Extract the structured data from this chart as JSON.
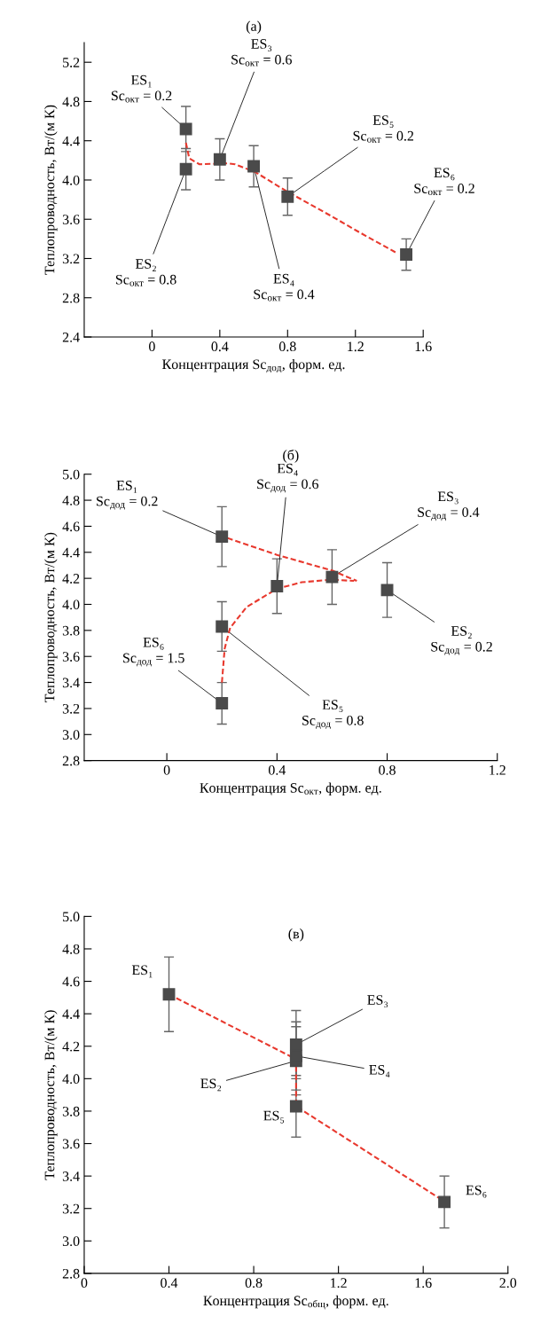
{
  "chart_data": [
    {
      "type": "scatter",
      "title": "(a)",
      "xlabel": "Концентрация Sc$_{дод}$, форм. ед.",
      "ylabel": "Теплопроводность, Вт/(м К)",
      "xlim": [
        -0.4,
        1.6
      ],
      "xticks": [
        0,
        0.4,
        0.8,
        1.2,
        1.6
      ],
      "ylim": [
        2.4,
        5.4
      ],
      "yticks": [
        2.4,
        2.8,
        3.2,
        3.6,
        {
          "value": 4,
          "label": "4.0"
        },
        4.4,
        4.8,
        5.2
      ],
      "series": [
        {
          "type": "scatter",
          "color": "#4a4a4a",
          "marker": "square",
          "x": [
            0.2,
            0.2,
            0.4,
            0.6,
            0.8,
            1.5
          ],
          "values": [
            4.52,
            4.11,
            4.21,
            4.14,
            3.83,
            3.24
          ],
          "errors": [
            0.23,
            0.21,
            0.21,
            0.21,
            0.19,
            0.16
          ]
        },
        {
          "type": "line",
          "color": "#e8392e",
          "line_style": "dashed",
          "x": [
            0.2,
            0.22,
            0.28,
            0.445,
            0.49,
            0.61,
            0.79,
            1.06,
            1.21,
            1.45
          ],
          "values": [
            4.38,
            4.22,
            4.16,
            4.17,
            4.16,
            4.08,
            3.89,
            3.63,
            3.48,
            3.25
          ]
        }
      ],
      "annotations": [
        {
          "text": "ES₁\nSc$_{окт}$ = 0.2",
          "x": 0.2,
          "y": 4.52
        },
        {
          "text": "ES₂\nSc$_{окт}$ = 0.8",
          "x": 0.2,
          "y": 4.11
        },
        {
          "text": "ES₃\nSc$_{окт}$ = 0.6",
          "x": 0.4,
          "y": 4.21
        },
        {
          "text": "ES₄\nSc$_{окт}$ = 0.4",
          "x": 0.6,
          "y": 4.14
        },
        {
          "text": "ES₅\nSc$_{окт}$ = 0.2",
          "x": 0.8,
          "y": 3.83
        },
        {
          "text": "ES₆\nSc$_{окт}$ = 0.2",
          "x": 1.5,
          "y": 3.24
        }
      ]
    },
    {
      "type": "scatter",
      "title": "(б)",
      "xlabel": "Концентрация Sc$_{окт}$, форм. ед.",
      "ylabel": "Теплопроводность, Вт/(м К)",
      "xlim": [
        -0.3,
        1.2
      ],
      "xticks": [
        0,
        0.4,
        0.8,
        1.2
      ],
      "ylim": [
        2.8,
        5.0
      ],
      "yticks": [
        2.8,
        {
          "value": 3,
          "label": "3.0"
        },
        3.2,
        3.4,
        3.6,
        3.8,
        {
          "value": 4,
          "label": "4.0"
        },
        4.2,
        4.4,
        4.6,
        4.8,
        {
          "value": 5,
          "label": "5.0"
        }
      ],
      "series": [
        {
          "type": "scatter",
          "color": "#4a4a4a",
          "marker": "square",
          "x": [
            0.2,
            0.4,
            0.6,
            0.8,
            0.2,
            0.2
          ],
          "values": [
            4.52,
            4.14,
            4.21,
            4.11,
            3.83,
            3.24
          ],
          "errors": [
            0.23,
            0.21,
            0.21,
            0.21,
            0.19,
            0.16
          ]
        },
        {
          "type": "line",
          "color": "#e8392e",
          "line_style": "dashed",
          "x": [
            0.22,
            0.4,
            0.6,
            0.69
          ],
          "values": [
            4.51,
            4.38,
            4.26,
            4.18
          ]
        },
        {
          "type": "line",
          "color": "#e8392e",
          "line_style": "dashed",
          "x": [
            0.2,
            0.21,
            0.23,
            0.29,
            0.4,
            0.49,
            0.6,
            0.68
          ],
          "values": [
            3.4,
            3.66,
            3.82,
            3.98,
            4.12,
            4.17,
            4.19,
            4.18
          ]
        }
      ],
      "annotations": [
        {
          "text": "ES₁\nSc$_{дод}$ = 0.2",
          "x": 0.2,
          "y": 4.52
        },
        {
          "text": "ES₄\nSc$_{дод}$ = 0.6",
          "x": 0.4,
          "y": 4.14
        },
        {
          "text": "ES₃\nSc$_{дод}$ = 0.4",
          "x": 0.6,
          "y": 4.21
        },
        {
          "text": "ES₂\nSc$_{дод}$ = 0.2",
          "x": 0.8,
          "y": 4.11
        },
        {
          "text": "ES₅\nSc$_{дод}$ = 0.8",
          "x": 0.2,
          "y": 3.83
        },
        {
          "text": "ES₆\nSc$_{дод}$ = 1.5",
          "x": 0.2,
          "y": 3.24
        }
      ]
    },
    {
      "type": "scatter",
      "title": "(в)",
      "xlabel": "Концентрация Sc$_{общ}$, форм. ед.",
      "ylabel": "Теплопроводность, Вт/(м К)",
      "xlim": [
        0,
        2.0
      ],
      "xticks": [
        0,
        0.4,
        0.8,
        1.2,
        1.6,
        {
          "value": 2,
          "label": "2.0"
        }
      ],
      "ylim": [
        2.8,
        5.0
      ],
      "yticks": [
        2.8,
        {
          "value": 3,
          "label": "3.0"
        },
        3.2,
        3.4,
        3.6,
        3.8,
        {
          "value": 4,
          "label": "4.0"
        },
        4.2,
        4.4,
        4.6,
        4.8,
        {
          "value": 5,
          "label": "5.0"
        }
      ],
      "series": [
        {
          "type": "scatter",
          "color": "#4a4a4a",
          "marker": "square",
          "x": [
            0.4,
            1.0,
            1.0,
            1.0,
            1.0,
            1.7
          ],
          "values": [
            4.52,
            4.11,
            4.21,
            4.14,
            3.83,
            3.24
          ],
          "errors": [
            0.23,
            0.21,
            0.21,
            0.21,
            0.19,
            0.16
          ]
        },
        {
          "type": "line",
          "color": "#e8392e",
          "line_style": "dashed",
          "x": [
            0.4,
            1.0,
            1.0,
            1.68
          ],
          "values": [
            4.52,
            4.12,
            3.83,
            3.26
          ]
        }
      ],
      "annotations": [
        {
          "text": "ES₁",
          "x": 0.4,
          "y": 4.52
        },
        {
          "text": "ES₂",
          "x": 1.0,
          "y": 4.11
        },
        {
          "text": "ES₃",
          "x": 1.0,
          "y": 4.21
        },
        {
          "text": "ES₄",
          "x": 1.0,
          "y": 4.14
        },
        {
          "text": "ES₅",
          "x": 1.0,
          "y": 3.83
        },
        {
          "text": "ES₆",
          "x": 1.7,
          "y": 3.24
        }
      ]
    }
  ]
}
